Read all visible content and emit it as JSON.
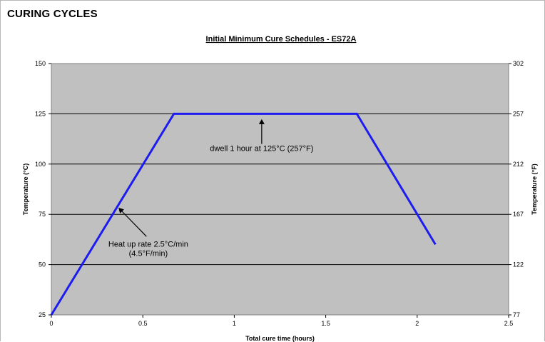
{
  "page": {
    "heading": "CURING CYCLES"
  },
  "chart_data": {
    "type": "line",
    "title": "Initial Minimum Cure Schedules - ES72A",
    "xlabel": "Total cure time (hours)",
    "ylabel": "Temperature (°C)",
    "y2label": "Temperature (°F)",
    "xlim": [
      0,
      2.5
    ],
    "ylim": [
      25,
      150
    ],
    "x_ticks": [
      "0",
      "0.5",
      "1",
      "1.5",
      "2",
      "2.5"
    ],
    "y_ticks": [
      "25",
      "50",
      "75",
      "100",
      "125",
      "150"
    ],
    "y2_ticks": [
      "77",
      "122",
      "167",
      "212",
      "257",
      "302"
    ],
    "grid": "horizontal",
    "plot_background": "#c0c0c0",
    "series": [
      {
        "color": "#1c1cf0",
        "points": [
          [
            0,
            25
          ],
          [
            0.67,
            125
          ],
          [
            1.67,
            125
          ],
          [
            2.1,
            60
          ]
        ]
      }
    ],
    "annotations": [
      {
        "id": "heat",
        "lines": [
          "Heat up rate 2.5°C/min",
          "(4.5°F/min)"
        ],
        "arrow_to": [
          0.37,
          78
        ],
        "arrow_from": [
          0.52,
          64
        ],
        "text_at": [
          0.53,
          59
        ]
      },
      {
        "id": "dwell",
        "lines": [
          "dwell 1 hour at 125°C (257°F)"
        ],
        "arrow_to": [
          1.15,
          122
        ],
        "arrow_from": [
          1.15,
          110
        ],
        "text_at": [
          1.15,
          106.5
        ]
      }
    ]
  }
}
